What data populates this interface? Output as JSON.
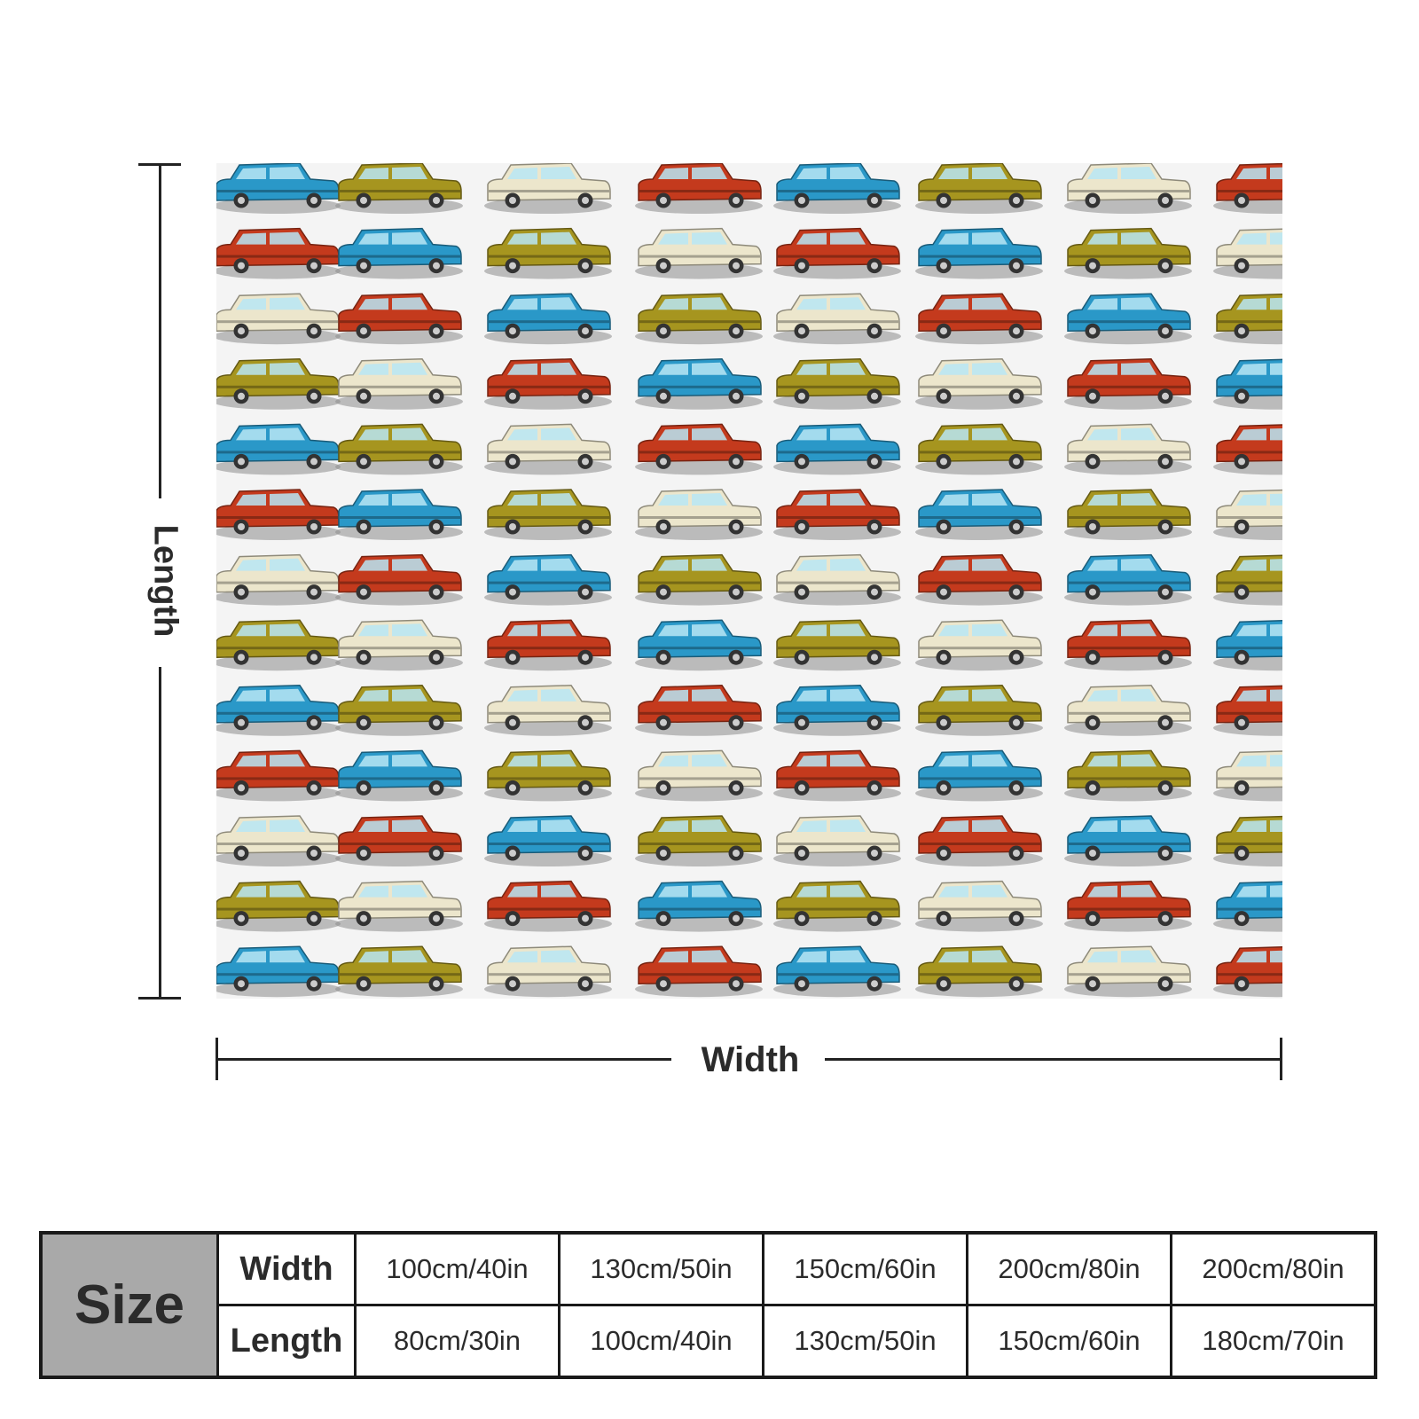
{
  "dimension_labels": {
    "length": "Length",
    "width": "Width"
  },
  "pattern": {
    "car_colors": [
      "#2a98c8",
      "#a6951f",
      "#ece6cc",
      "#c43a1d"
    ]
  },
  "size_table": {
    "title": "Size",
    "width_label": "Width",
    "length_label": "Length",
    "widths": [
      "100cm/40in",
      "130cm/50in",
      "150cm/60in",
      "200cm/80in",
      "200cm/80in"
    ],
    "lengths": [
      "80cm/30in",
      "100cm/40in",
      "130cm/50in",
      "150cm/60in",
      "180cm/70in"
    ]
  }
}
